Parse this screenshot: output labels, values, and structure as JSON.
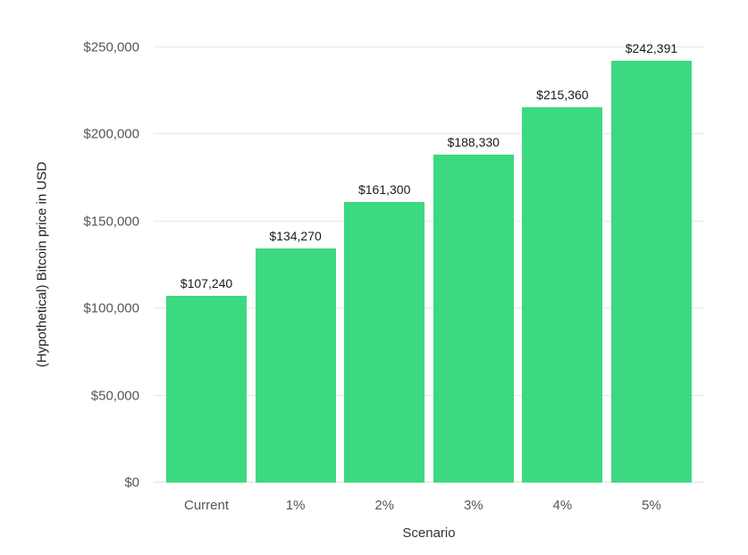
{
  "chart_data": {
    "type": "bar",
    "title": "",
    "categories": [
      "Current",
      "1%",
      "2%",
      "3%",
      "4%",
      "5%"
    ],
    "values": [
      107240,
      134270,
      161300,
      188330,
      215360,
      242391
    ],
    "bar_labels": [
      "$107,240",
      "$134,270",
      "$161,300",
      "$188,330",
      "$215,360",
      "$242,391"
    ],
    "xlabel": "Scenario",
    "ylabel": "(Hypothetical) Bitcoin price in USD",
    "ylim": [
      0,
      250000
    ],
    "yticks": [
      {
        "value": 0,
        "label": "$0"
      },
      {
        "value": 50000,
        "label": "$50,000"
      },
      {
        "value": 100000,
        "label": "$100,000"
      },
      {
        "value": 150000,
        "label": "$150,000"
      },
      {
        "value": 200000,
        "label": "$200,000"
      },
      {
        "value": 250000,
        "label": "$250,000"
      }
    ],
    "grid": true,
    "legend": "none",
    "colors": {
      "bar": "#3cd980",
      "gridline": "#e7e7e7",
      "tick_text": "#555555",
      "bar_label_text": "#1a1a1a",
      "axis_title_text": "#333333",
      "background": "#ffffff"
    }
  }
}
